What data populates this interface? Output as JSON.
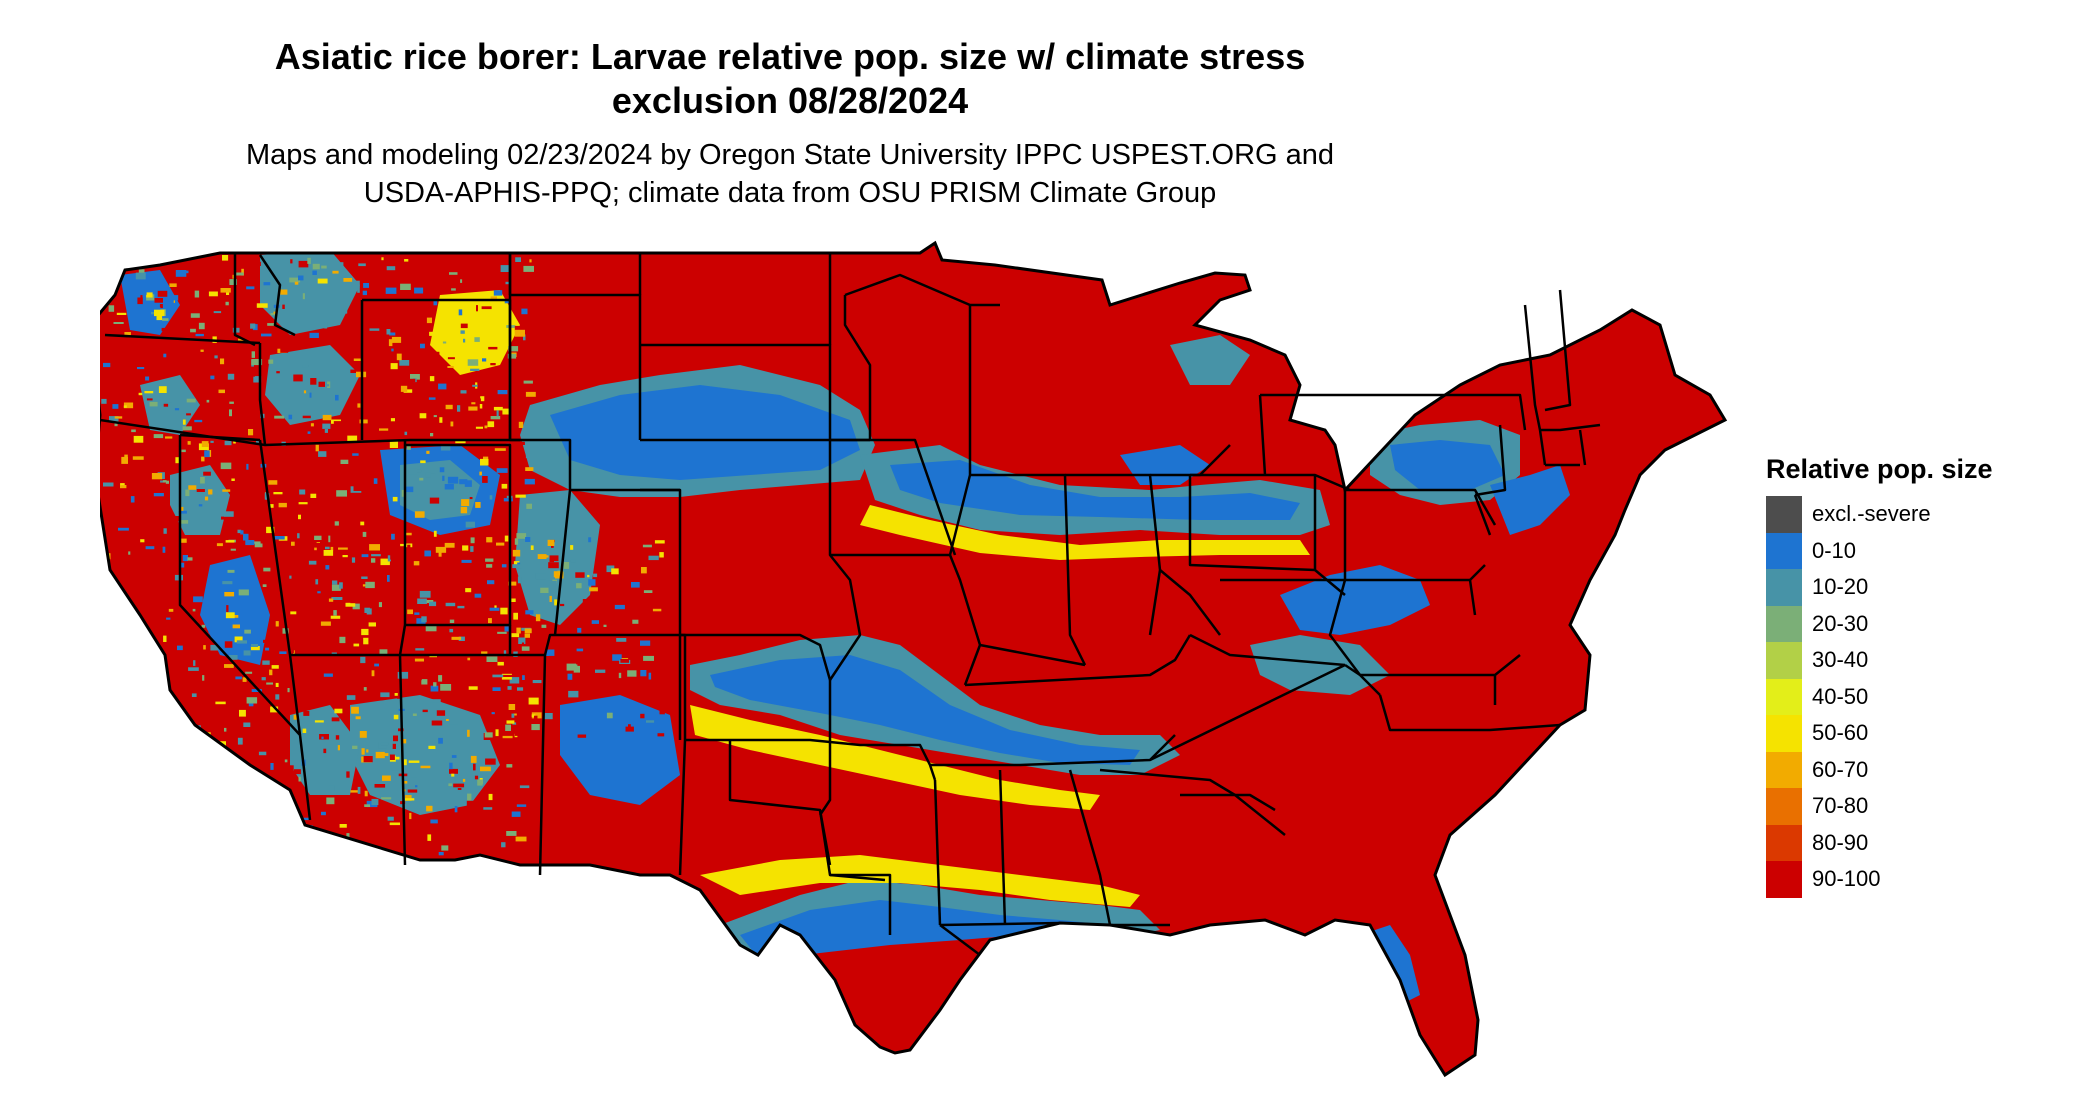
{
  "header": {
    "title_line1": "Asiatic rice borer: Larvae relative pop. size w/ climate stress",
    "title_line2": "exclusion 08/28/2024",
    "subtitle_line1": "Maps and modeling 02/23/2024 by Oregon State University IPPC USPEST.ORG and",
    "subtitle_line2": "USDA-APHIS-PPQ; climate data from OSU PRISM Climate Group"
  },
  "legend": {
    "title": "Relative pop. size",
    "items": [
      {
        "label": "excl.-severe",
        "color": "#4d4d4d"
      },
      {
        "label": "0-10",
        "color": "#1e74d1"
      },
      {
        "label": "10-20",
        "color": "#4793a7"
      },
      {
        "label": "20-30",
        "color": "#7baf77"
      },
      {
        "label": "30-40",
        "color": "#b2d047"
      },
      {
        "label": "40-50",
        "color": "#e3ee19"
      },
      {
        "label": "50-60",
        "color": "#f5e300"
      },
      {
        "label": "60-70",
        "color": "#f2ab00"
      },
      {
        "label": "70-80",
        "color": "#e97000"
      },
      {
        "label": "80-90",
        "color": "#db3900"
      },
      {
        "label": "90-100",
        "color": "#cc0000"
      }
    ]
  },
  "map": {
    "region": "Contiguous United States",
    "boundaries": "state outlines"
  }
}
